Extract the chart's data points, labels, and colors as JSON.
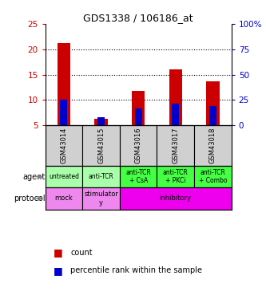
{
  "title": "GDS1338 / 106186_at",
  "samples": [
    "GSM43014",
    "GSM43015",
    "GSM43016",
    "GSM43017",
    "GSM43018"
  ],
  "count_values": [
    21.2,
    6.3,
    11.8,
    16.0,
    13.6
  ],
  "count_base": 5.0,
  "percentile_values": [
    10.0,
    6.6,
    8.3,
    9.3,
    8.8
  ],
  "percentile_base": 5.0,
  "ylim_left": [
    5,
    25
  ],
  "ylim_right": [
    0,
    100
  ],
  "left_ticks": [
    5,
    10,
    15,
    20,
    25
  ],
  "right_ticks": [
    0,
    25,
    50,
    75,
    100
  ],
  "agent_labels": [
    "untreated",
    "anti-TCR",
    "anti-TCR\n+ CsA",
    "anti-TCR\n+ PKCi",
    "anti-TCR\n+ Combo"
  ],
  "agent_colors": [
    "#aaffaa",
    "#aaffaa",
    "#44ff44",
    "#44ff44",
    "#44ff44"
  ],
  "sample_bg_color": "#d0d0d0",
  "bar_color": "#cc0000",
  "percentile_color": "#0000cc",
  "bar_width": 0.35,
  "left_tick_color": "#cc0000",
  "right_tick_color": "#0000cc",
  "protocol_groups": [
    {
      "label": "mock",
      "start": 0,
      "end": 1,
      "color": "#ee88ee"
    },
    {
      "label": "stimulator\ny",
      "start": 1,
      "end": 2,
      "color": "#ee88ee"
    },
    {
      "label": "inhibitory",
      "start": 2,
      "end": 5,
      "color": "#ee00ee"
    }
  ]
}
